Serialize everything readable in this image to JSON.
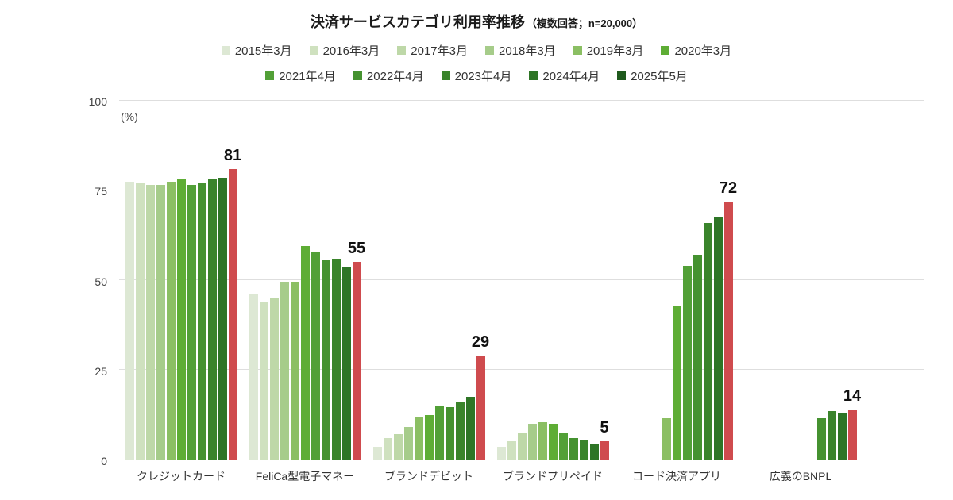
{
  "page": {
    "background": "#ffffff"
  },
  "title": {
    "main": "決済サービスカテゴリ利用率推移",
    "sub": "（複数回答；n=20,000）"
  },
  "chart_data": {
    "type": "bar",
    "title": "決済サービスカテゴリ利用率推移（複数回答；n=20,000）",
    "ylabel": "(%)",
    "ylim": [
      0,
      100
    ],
    "yticks": [
      0,
      25,
      50,
      75,
      100
    ],
    "grid": true,
    "legend_position": "top",
    "legend_split": 6,
    "highlight_series": "2025年5月",
    "highlight_color": "#cf4b4e",
    "series": [
      {
        "label": "2015年3月",
        "color": "#dde8d4"
      },
      {
        "label": "2016年3月",
        "color": "#cfe1bf"
      },
      {
        "label": "2017年3月",
        "color": "#bed8a8"
      },
      {
        "label": "2018年3月",
        "color": "#a6cc8a"
      },
      {
        "label": "2019年3月",
        "color": "#8bbf63"
      },
      {
        "label": "2020年3月",
        "color": "#5ead35"
      },
      {
        "label": "2021年4月",
        "color": "#52a037"
      },
      {
        "label": "2022年4月",
        "color": "#459230"
      },
      {
        "label": "2023年4月",
        "color": "#3a842b"
      },
      {
        "label": "2024年4月",
        "color": "#2e7526"
      },
      {
        "label": "2025年5月",
        "color": "#1f5a1d"
      }
    ],
    "categories": [
      "クレジットカード",
      "FeliCa型電子マネー",
      "ブランドデビット",
      "ブランドプリペイド",
      "コード決済アプリ",
      "広義のBNPL"
    ],
    "groups": [
      {
        "category": "クレジットカード",
        "values": [
          77.5,
          77,
          76.5,
          76.5,
          77.5,
          78,
          76.5,
          77,
          78,
          78.5,
          81
        ],
        "label": "81"
      },
      {
        "category": "FeliCa型電子マネー",
        "values": [
          46,
          44,
          45,
          49.5,
          49.5,
          59.5,
          58,
          55.5,
          56,
          53.5,
          55
        ],
        "label": "55"
      },
      {
        "category": "ブランドデビット",
        "values": [
          3.5,
          6,
          7,
          9,
          12,
          12.5,
          15,
          14.5,
          16,
          17.5,
          29
        ],
        "label": "29"
      },
      {
        "category": "ブランドプリペイド",
        "values": [
          3.5,
          5,
          7.5,
          10,
          10.5,
          10,
          7.5,
          6,
          5.5,
          4.5,
          5
        ],
        "label": "5"
      },
      {
        "category": "コード決済アプリ",
        "values": [
          null,
          null,
          null,
          null,
          11.5,
          43,
          54,
          57,
          66,
          67.5,
          72
        ],
        "label": "72"
      },
      {
        "category": "広義のBNPL",
        "values": [
          null,
          null,
          null,
          null,
          null,
          null,
          null,
          11.5,
          13.5,
          13,
          14
        ],
        "label": "14"
      }
    ]
  }
}
